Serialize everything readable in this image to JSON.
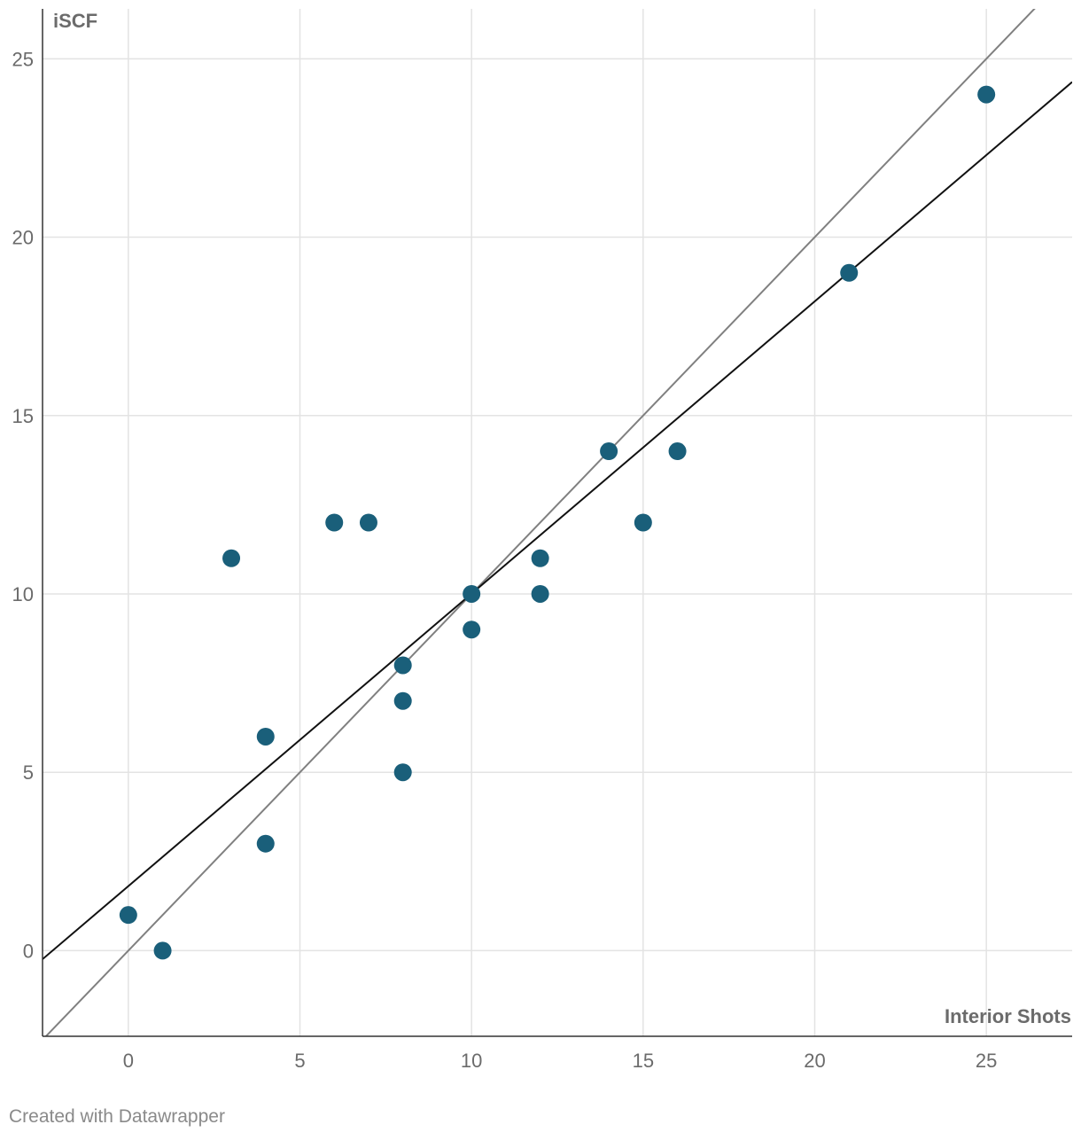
{
  "chart_data": {
    "type": "scatter",
    "xlabel": "Interior Shots",
    "ylabel": "iSCF",
    "xlim": [
      -2.5,
      27.5
    ],
    "ylim": [
      -2.4,
      26.4
    ],
    "x_ticks": [
      0,
      5,
      10,
      15,
      20,
      25
    ],
    "y_ticks": [
      0,
      5,
      10,
      15,
      20,
      25
    ],
    "grid": true,
    "series": [
      {
        "points": [
          {
            "x": 0,
            "y": 1
          },
          {
            "x": 1,
            "y": 0
          },
          {
            "x": 3,
            "y": 11
          },
          {
            "x": 4,
            "y": 6
          },
          {
            "x": 4,
            "y": 3
          },
          {
            "x": 6,
            "y": 12
          },
          {
            "x": 7,
            "y": 12
          },
          {
            "x": 8,
            "y": 8
          },
          {
            "x": 8,
            "y": 7
          },
          {
            "x": 8,
            "y": 5
          },
          {
            "x": 10,
            "y": 10
          },
          {
            "x": 10,
            "y": 9
          },
          {
            "x": 12,
            "y": 11
          },
          {
            "x": 12,
            "y": 10
          },
          {
            "x": 14,
            "y": 14
          },
          {
            "x": 15,
            "y": 12
          },
          {
            "x": 16,
            "y": 14
          },
          {
            "x": 21,
            "y": 19
          },
          {
            "x": 25,
            "y": 24
          }
        ]
      }
    ],
    "lines": [
      {
        "slope": 1,
        "intercept": 0,
        "color": "#808080"
      },
      {
        "slope": 0.8196,
        "intercept": 1.81,
        "color": "#111111"
      }
    ],
    "colors": {
      "point": "#1a5f7a",
      "grid": "#e3e3e3",
      "axis": "#333333"
    }
  },
  "footer": "Created with Datawrapper"
}
